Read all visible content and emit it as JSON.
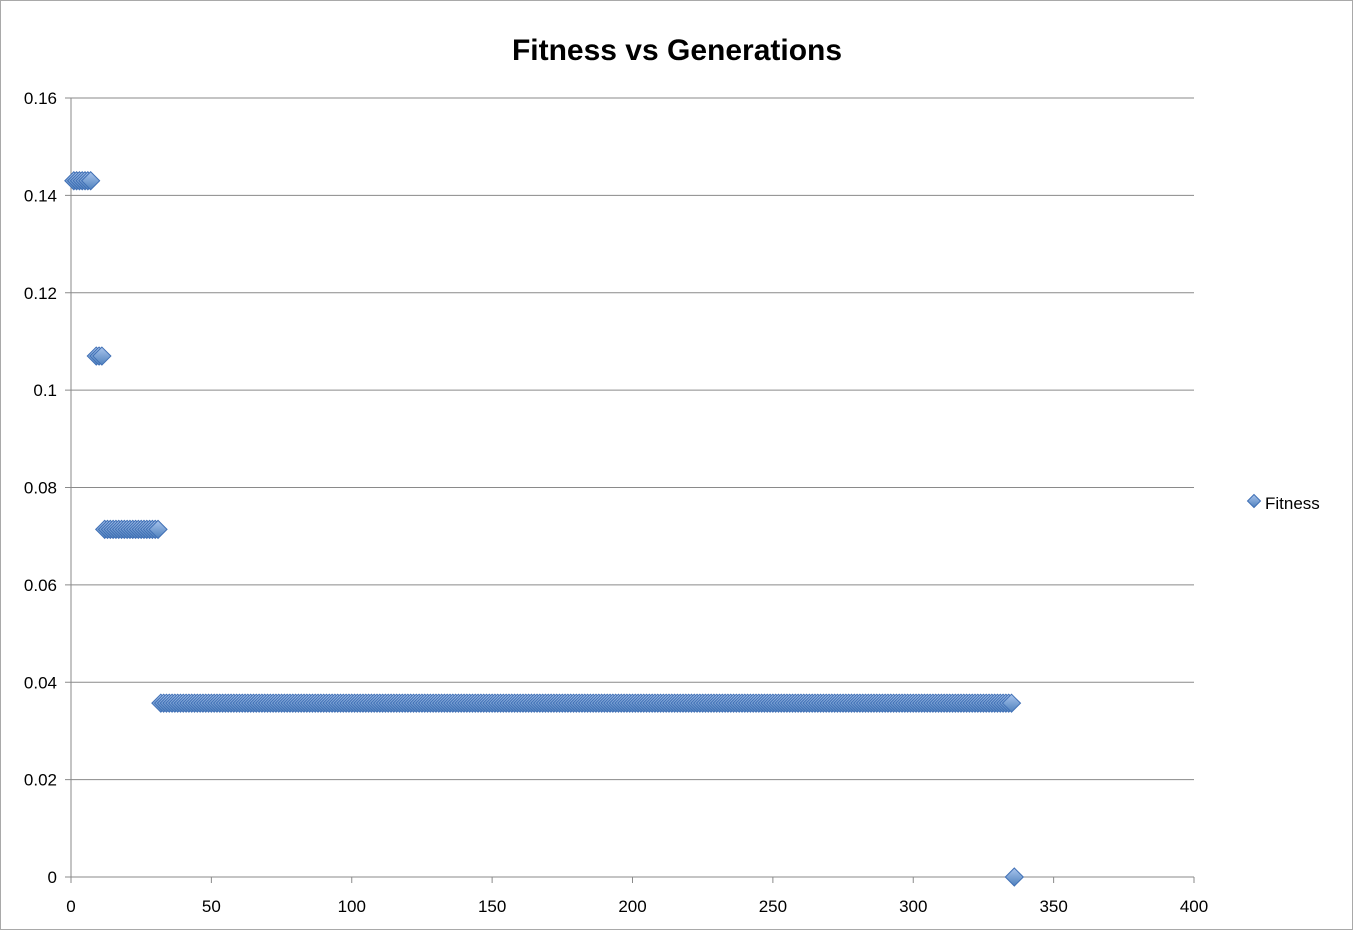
{
  "chart_data": {
    "type": "scatter",
    "title": "Fitness vs Generations",
    "xlabel": "",
    "ylabel": "",
    "xlim": [
      0,
      400
    ],
    "ylim": [
      0,
      0.16
    ],
    "xticks": [
      "0",
      "50",
      "100",
      "150",
      "200",
      "250",
      "300",
      "350",
      "400"
    ],
    "yticks": [
      "0",
      "0.02",
      "0.04",
      "0.06",
      "0.08",
      "0.1",
      "0.12",
      "0.14",
      "0.16"
    ],
    "grid": true,
    "legend_position": "right",
    "marker_color": "#4f81bd",
    "series": [
      {
        "name": "Fitness",
        "segments": [
          {
            "x_from": 1,
            "x_to": 7,
            "y": 0.143
          },
          {
            "x_from": 9,
            "x_to": 11,
            "y": 0.107
          },
          {
            "x_from": 12,
            "x_to": 31,
            "y": 0.0714
          },
          {
            "x_from": 32,
            "x_to": 335,
            "y": 0.0357
          },
          {
            "x_from": 336,
            "x_to": 336,
            "y": 0
          }
        ]
      }
    ]
  }
}
